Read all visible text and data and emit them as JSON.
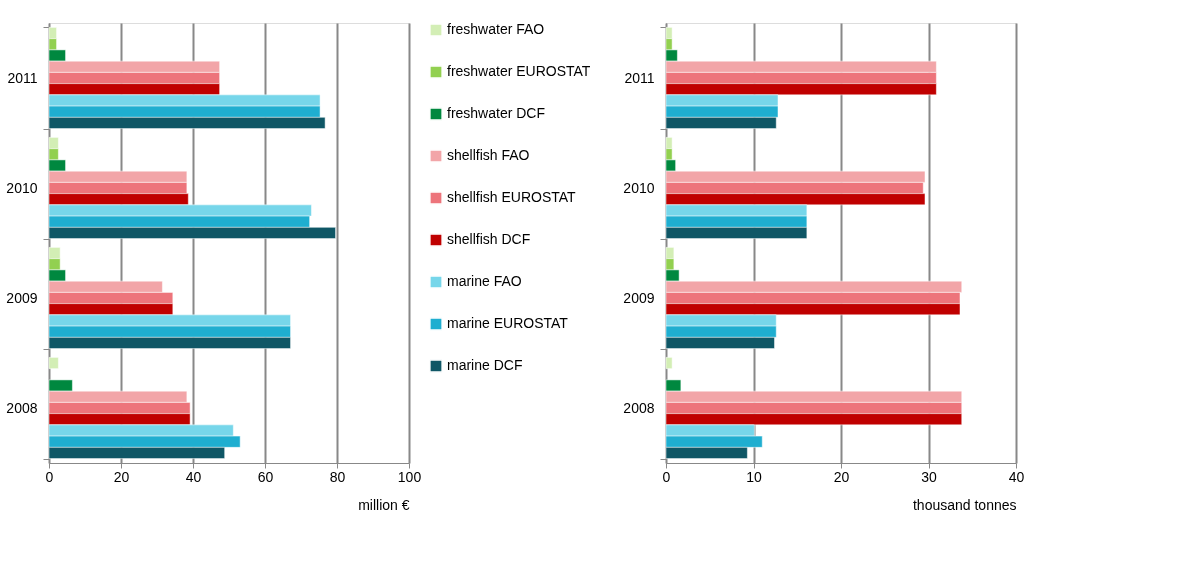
{
  "chart_data": [
    {
      "type": "bar",
      "orientation": "horizontal",
      "categories": [
        "2011",
        "2010",
        "2009",
        "2008"
      ],
      "xlabel": "million €",
      "xlim": [
        0,
        100
      ],
      "xticks": [
        0,
        20,
        40,
        60,
        80,
        100
      ],
      "grid": "x",
      "legend": "right",
      "series": [
        {
          "name": "freshwater FAO",
          "color": "#d3eeb5",
          "values": [
            2.1,
            2.6,
            3.1,
            2.6
          ]
        },
        {
          "name": "freshwater EUROSTAT",
          "color": "#92d050",
          "values": [
            2.1,
            2.6,
            3.1,
            null
          ]
        },
        {
          "name": "freshwater DCF",
          "color": "#00883f",
          "values": [
            4.6,
            4.6,
            4.6,
            6.5
          ]
        },
        {
          "name": "shellfish FAO",
          "color": "#f2a5a8",
          "values": [
            47.4,
            38.3,
            31.5,
            38.3
          ]
        },
        {
          "name": "shellfish EUROSTAT",
          "color": "#ed747b",
          "values": [
            47.4,
            38.3,
            34.4,
            39.2
          ]
        },
        {
          "name": "shellfish DCF",
          "color": "#c00000",
          "values": [
            47.4,
            38.7,
            34.4,
            39.2
          ]
        },
        {
          "name": "marine FAO",
          "color": "#76d6ea",
          "values": [
            75.3,
            72.9,
            67.1,
            51.2
          ]
        },
        {
          "name": "marine EUROSTAT",
          "color": "#1faed0",
          "values": [
            75.3,
            72.4,
            67.1,
            53.1
          ]
        },
        {
          "name": "marine DCF",
          "color": "#0f5766",
          "values": [
            76.7,
            79.6,
            67.1,
            48.8
          ]
        }
      ]
    },
    {
      "type": "bar",
      "orientation": "horizontal",
      "categories": [
        "2011",
        "2010",
        "2009",
        "2008"
      ],
      "xlabel": "thousand tonnes",
      "xlim": [
        0,
        40
      ],
      "xticks": [
        0,
        10,
        20,
        30,
        40
      ],
      "grid": "x",
      "series": [
        {
          "color": "#d3eeb5",
          "values": [
            0.7,
            0.7,
            0.9,
            0.7
          ]
        },
        {
          "color": "#92d050",
          "values": [
            0.7,
            0.7,
            0.9,
            null
          ]
        },
        {
          "color": "#00883f",
          "values": [
            1.3,
            1.1,
            1.5,
            1.7
          ]
        },
        {
          "color": "#f2a5a8",
          "values": [
            30.9,
            29.6,
            33.8,
            33.8
          ]
        },
        {
          "color": "#ed747b",
          "values": [
            30.9,
            29.4,
            33.6,
            33.8
          ]
        },
        {
          "color": "#c00000",
          "values": [
            30.9,
            29.6,
            33.6,
            33.8
          ]
        },
        {
          "color": "#76d6ea",
          "values": [
            12.8,
            16.1,
            12.6,
            10.1
          ]
        },
        {
          "color": "#1faed0",
          "values": [
            12.8,
            16.1,
            12.6,
            11.0
          ]
        },
        {
          "color": "#0f5766",
          "values": [
            12.6,
            16.1,
            12.4,
            9.3
          ]
        }
      ]
    }
  ]
}
